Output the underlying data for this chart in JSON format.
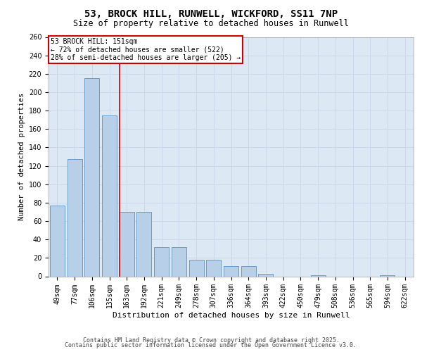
{
  "title_line1": "53, BROCK HILL, RUNWELL, WICKFORD, SS11 7NP",
  "title_line2": "Size of property relative to detached houses in Runwell",
  "xlabel": "Distribution of detached houses by size in Runwell",
  "ylabel": "Number of detached properties",
  "categories": [
    "49sqm",
    "77sqm",
    "106sqm",
    "135sqm",
    "163sqm",
    "192sqm",
    "221sqm",
    "249sqm",
    "278sqm",
    "307sqm",
    "336sqm",
    "364sqm",
    "393sqm",
    "422sqm",
    "450sqm",
    "479sqm",
    "508sqm",
    "536sqm",
    "565sqm",
    "594sqm",
    "622sqm"
  ],
  "values": [
    77,
    127,
    215,
    175,
    70,
    70,
    32,
    32,
    18,
    18,
    11,
    11,
    3,
    0,
    0,
    1,
    0,
    0,
    0,
    1,
    0
  ],
  "bar_color": "#b8cfe8",
  "bar_edge_color": "#6090c0",
  "grid_color": "#ccd8ea",
  "background_color": "#dde8f5",
  "vline_color": "#cc0000",
  "vline_pos": 3.57,
  "annotation_text": "53 BROCK HILL: 151sqm\n← 72% of detached houses are smaller (522)\n28% of semi-detached houses are larger (205) →",
  "annotation_box_color": "#cc0000",
  "footer_line1": "Contains HM Land Registry data © Crown copyright and database right 2025.",
  "footer_line2": "Contains public sector information licensed under the Open Government Licence v3.0.",
  "ylim": [
    0,
    260
  ],
  "yticks": [
    0,
    20,
    40,
    60,
    80,
    100,
    120,
    140,
    160,
    180,
    200,
    220,
    240,
    260
  ],
  "title1_fontsize": 10,
  "title2_fontsize": 8.5,
  "ylabel_fontsize": 7.5,
  "xlabel_fontsize": 8,
  "tick_fontsize": 7,
  "footer_fontsize": 6,
  "ann_fontsize": 7
}
